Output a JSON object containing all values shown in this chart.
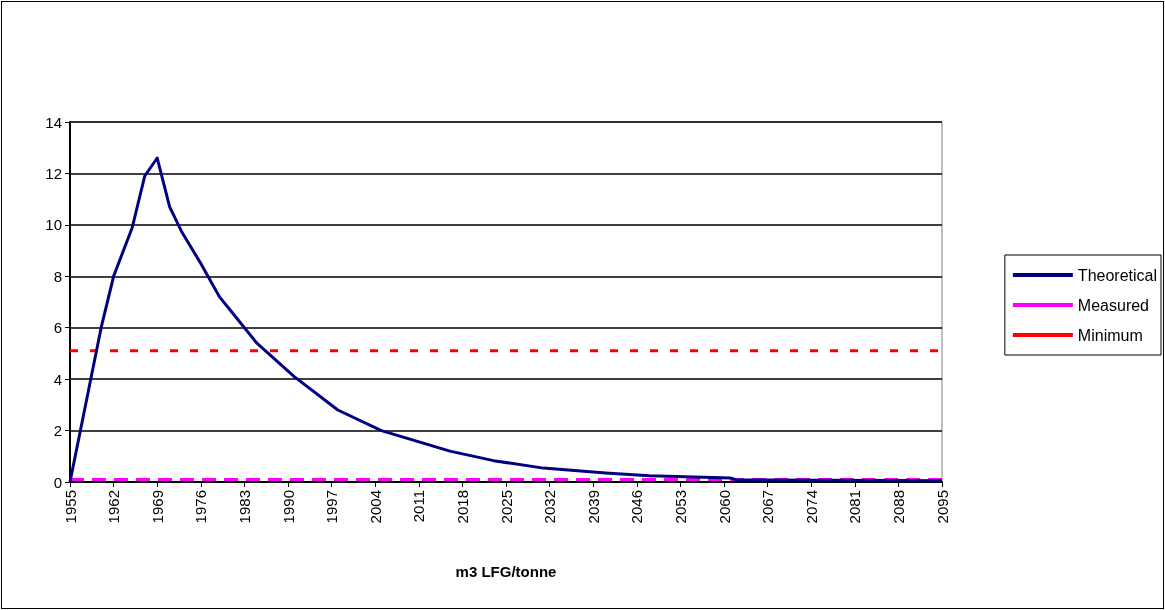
{
  "chart_data": {
    "type": "line",
    "xlabel": "m3 LFG/tonne",
    "xlim": [
      1955,
      2095
    ],
    "xticks": [
      1955,
      1962,
      1969,
      1976,
      1983,
      1990,
      1997,
      2004,
      2011,
      2018,
      2025,
      2032,
      2039,
      2046,
      2053,
      2060,
      2067,
      2074,
      2081,
      2088,
      2095
    ],
    "ylim": [
      0,
      14
    ],
    "yticks": [
      0,
      2,
      4,
      6,
      8,
      10,
      12,
      14
    ],
    "grid": "y",
    "legend": "right",
    "marker": "none",
    "series": [
      {
        "name": "Theoretical",
        "color": "#000080",
        "line_style": "solid",
        "x": [
          1955,
          1958,
          1960,
          1962,
          1965,
          1967,
          1969,
          1971,
          1973,
          1976,
          1979,
          1981,
          1985,
          1991,
          1998,
          2005,
          2016,
          2023,
          2031,
          2041,
          2048,
          2061,
          2062,
          2095
        ],
        "values": [
          0,
          3.6,
          6.0,
          8.0,
          9.9,
          11.9,
          12.6,
          10.7,
          9.7,
          8.5,
          7.2,
          6.6,
          5.4,
          4.1,
          2.8,
          2.0,
          1.2,
          0.83,
          0.54,
          0.35,
          0.24,
          0.16,
          0.08,
          0.05
        ]
      },
      {
        "name": "Measured",
        "color": "#ff00ff",
        "line_style": "dashed",
        "x": [
          1955,
          2095
        ],
        "values": [
          0.1,
          0.1
        ]
      },
      {
        "name": "Minimum",
        "color": "#ff0000",
        "line_style": "dotted",
        "x": [
          1955,
          2095
        ],
        "values": [
          5.1,
          5.1
        ]
      }
    ]
  }
}
